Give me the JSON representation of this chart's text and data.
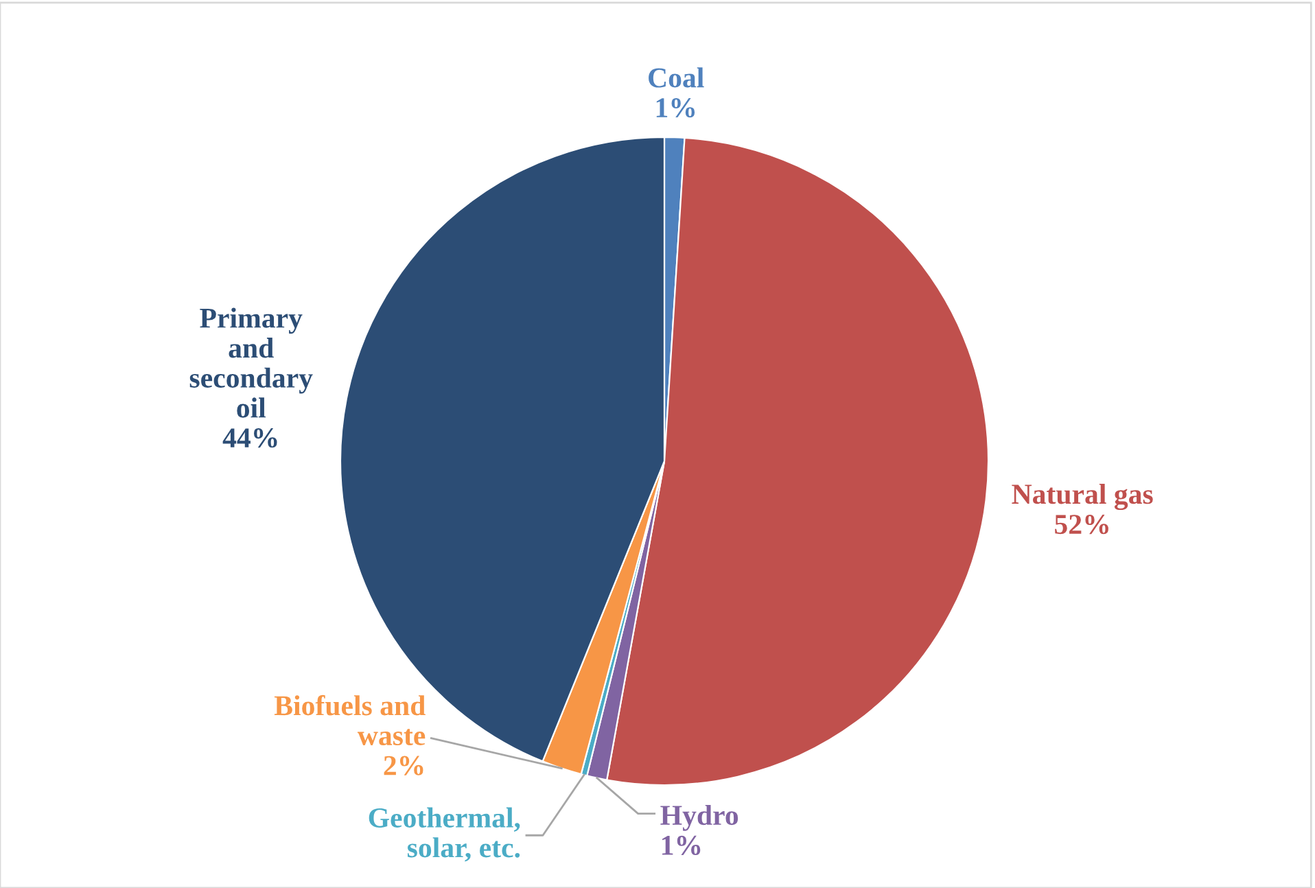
{
  "chart_data": {
    "type": "pie",
    "categories": [
      "Coal",
      "Natural gas",
      "Hydro",
      "Geothermal,\nsolar, etc.",
      "Biofuels and\nwaste",
      "Primary\nand\nsecondary\noil"
    ],
    "values": [
      1,
      52,
      1,
      0.3,
      2,
      44
    ],
    "value_labels": [
      "1%",
      "52%",
      "1%",
      null,
      "2%",
      "44%"
    ],
    "colors": [
      "#4f81bd",
      "#c0504d",
      "#8064a2",
      "#4bacc6",
      "#f79646",
      "#2c4d75"
    ],
    "legend": false
  }
}
